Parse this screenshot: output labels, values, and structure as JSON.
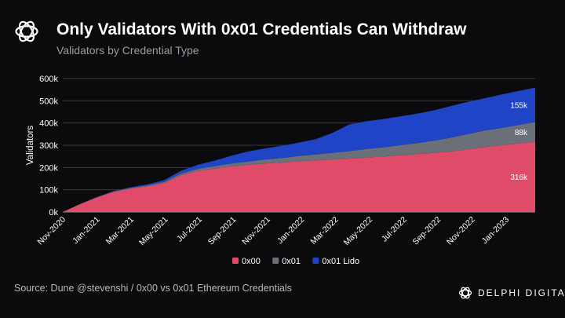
{
  "header": {
    "title": "Only Validators With 0x01 Credentials Can Withdraw",
    "subtitle": "Validators by Credential Type"
  },
  "footer": {
    "source": "Source: Dune @stevenshi / 0x00 vs 0x01 Ethereum Credentials",
    "brand": "DELPHI DIGITAL",
    "brand_icon": "delphi-logo-icon"
  },
  "colors": {
    "background": "#0b0b0d",
    "0x00": "#e04b6a",
    "0x01": "#6b6f77",
    "0x01 Lido": "#1f44c6"
  },
  "chart_data": {
    "type": "area",
    "stacked": true,
    "title": "Only Validators With 0x01 Credentials Can Withdraw",
    "subtitle": "Validators by Credential Type",
    "xlabel": "",
    "ylabel": "Validators",
    "ylim": [
      0,
      600000
    ],
    "y_ticks": [
      0,
      100000,
      200000,
      300000,
      400000,
      500000,
      600000
    ],
    "y_tick_labels": [
      "0k",
      "100k",
      "200k",
      "300k",
      "400k",
      "500k",
      "600k"
    ],
    "x_tick_labels": [
      "Nov-2020",
      "Jan-2021",
      "Mar-2021",
      "May-2021",
      "Jul-2021",
      "Sep-2021",
      "Nov-2021",
      "Jan-2022",
      "Mar-2022",
      "May-2022",
      "Jul-2022",
      "Sep-2022",
      "Nov-2022",
      "Jan-2023"
    ],
    "grid": true,
    "legend_position": "bottom",
    "x": [
      "Nov-2020",
      "Dec-2020",
      "Jan-2021",
      "Feb-2021",
      "Mar-2021",
      "Apr-2021",
      "May-2021",
      "Jun-2021",
      "Jul-2021",
      "Aug-2021",
      "Sep-2021",
      "Oct-2021",
      "Nov-2021",
      "Dec-2021",
      "Jan-2022",
      "Feb-2022",
      "Mar-2022",
      "Apr-2022",
      "May-2022",
      "Jun-2022",
      "Jul-2022",
      "Aug-2022",
      "Sep-2022",
      "Oct-2022",
      "Nov-2022",
      "Dec-2022",
      "Jan-2023",
      "Feb-2023",
      "Mar-2023"
    ],
    "series": [
      {
        "name": "0x00",
        "values": [
          0,
          35000,
          65000,
          90000,
          105000,
          115000,
          130000,
          165000,
          185000,
          195000,
          205000,
          212000,
          218000,
          222000,
          228000,
          232000,
          236000,
          240000,
          245000,
          250000,
          255000,
          260000,
          266000,
          272000,
          282000,
          292000,
          300000,
          308000,
          316000
        ],
        "end_label": "316k"
      },
      {
        "name": "0x01",
        "values": [
          0,
          0,
          1000,
          2000,
          3000,
          4000,
          5000,
          7000,
          9000,
          11000,
          13000,
          15000,
          18000,
          21000,
          24000,
          27000,
          30000,
          34000,
          38000,
          41000,
          45000,
          50000,
          55000,
          62000,
          68000,
          74000,
          78000,
          83000,
          88000
        ],
        "end_label": "88k"
      },
      {
        "name": "0x01 Lido",
        "values": [
          0,
          0,
          1000,
          2000,
          3000,
          5000,
          8000,
          13000,
          18000,
          25000,
          35000,
          45000,
          50000,
          55000,
          60000,
          68000,
          90000,
          120000,
          125000,
          127000,
          130000,
          132000,
          136000,
          142000,
          145000,
          145000,
          150000,
          153000,
          155000
        ],
        "end_label": "155k"
      }
    ],
    "legend": [
      "0x00",
      "0x01",
      "0x01 Lido"
    ]
  }
}
